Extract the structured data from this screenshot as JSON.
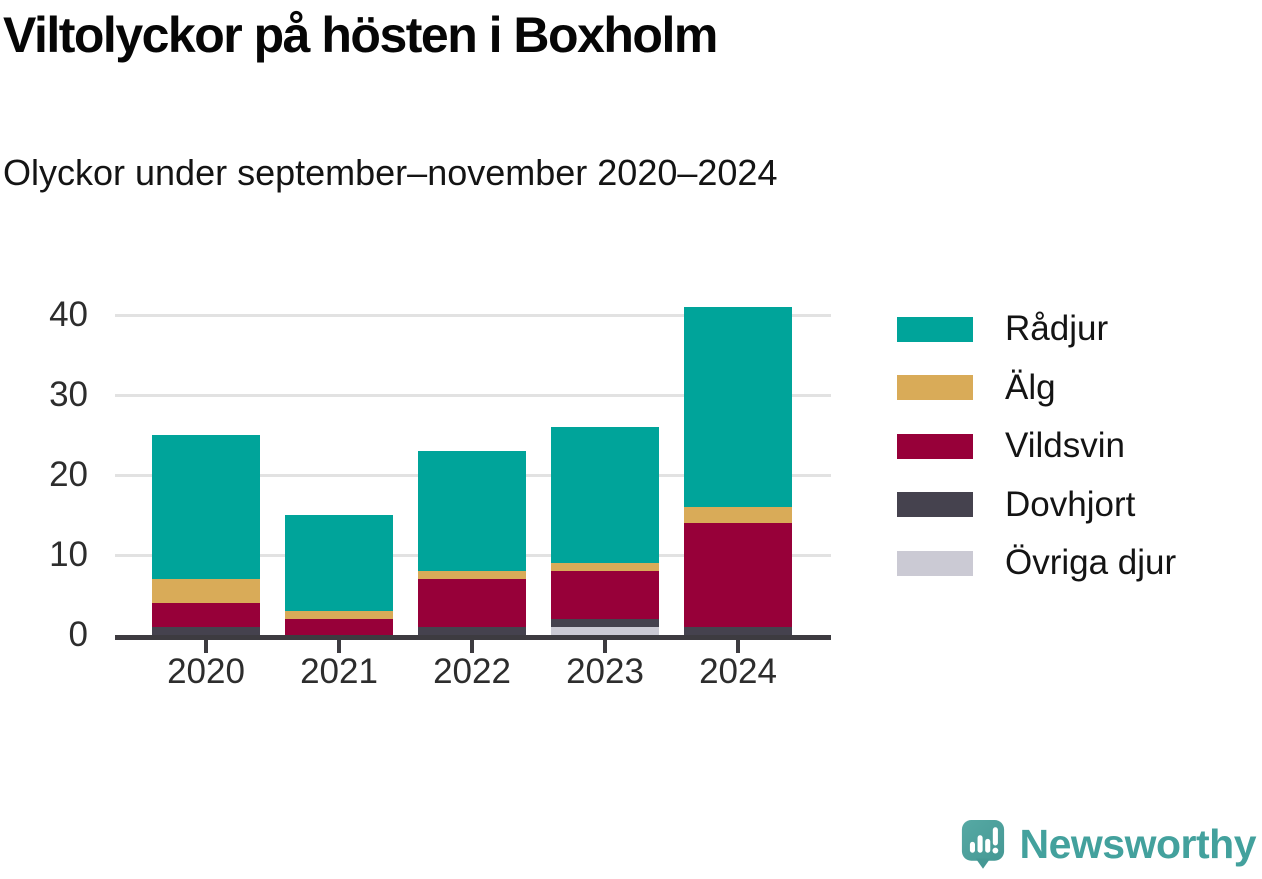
{
  "header": {
    "title": "Viltolyckor på hösten i Boxholm",
    "subtitle": "Olyckor under september–november 2020–2024"
  },
  "chart_data": {
    "type": "bar",
    "stacked": true,
    "title": "Viltolyckor på hösten i Boxholm",
    "subtitle": "Olyckor under september–november 2020–2024",
    "categories": [
      "2020",
      "2021",
      "2022",
      "2023",
      "2024"
    ],
    "series": [
      {
        "name": "Rådjur",
        "color": "#00a49a",
        "values": [
          18,
          12,
          15,
          17,
          25
        ]
      },
      {
        "name": "Älg",
        "color": "#d9ab58",
        "values": [
          3,
          1,
          1,
          1,
          2
        ]
      },
      {
        "name": "Vildsvin",
        "color": "#970039",
        "values": [
          3,
          2,
          6,
          6,
          13
        ]
      },
      {
        "name": "Dovhjort",
        "color": "#45424e",
        "values": [
          1,
          0,
          1,
          1,
          1
        ]
      },
      {
        "name": "Övriga djur",
        "color": "#cbcad4",
        "values": [
          0,
          0,
          0,
          1,
          0
        ]
      }
    ],
    "stack_order": "legend order top-to-bottom equals stack order top-to-bottom",
    "totals": [
      25,
      15,
      23,
      26,
      41
    ],
    "y_ticks": [
      0,
      10,
      20,
      30,
      40
    ],
    "ylim": [
      0,
      41
    ],
    "xlabel": "",
    "ylabel": "",
    "grid": "horizontal",
    "legend_position": "right"
  },
  "legend": {
    "items": [
      "Rådjur",
      "Älg",
      "Vildsvin",
      "Dovhjort",
      "Övriga djur"
    ]
  },
  "footer": {
    "brand": "Newsworthy",
    "brand_color": "#43a19d",
    "logo_icon": "speech-bubble-bar-chart-icon"
  }
}
